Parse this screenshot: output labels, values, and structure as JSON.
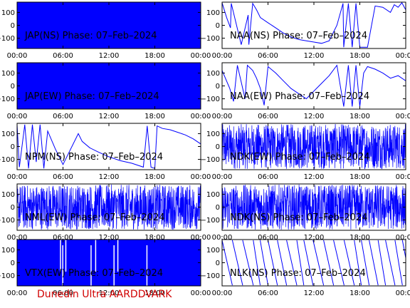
{
  "colors": {
    "trace": "#0000ff",
    "frame": "#000000",
    "footer": "#d00000",
    "background": "#ffffff"
  },
  "footer": {
    "text": "Dunedin Ultra AARDDVARK"
  },
  "chart_data": [
    {
      "type": "line",
      "title": "JAP(NS) Phase: 07–Feb–2024",
      "x_ticks": [
        "00:00",
        "06:00",
        "12:00",
        "18:00",
        "00:00"
      ],
      "y_ticks": [
        "100",
        "0",
        "−100"
      ],
      "ylim": [
        -180,
        180
      ],
      "pattern": "solid",
      "series": [
        {
          "x": [],
          "y": []
        }
      ]
    },
    {
      "type": "line",
      "title": "NAA(NS) Phase: 07–Feb–2024",
      "x_ticks": [
        "00:00",
        "06:00",
        "12:00",
        "18:00",
        "00:00"
      ],
      "y_ticks": [
        "100",
        "0",
        "−100"
      ],
      "ylim": [
        -180,
        180
      ],
      "pattern": "segments",
      "series": [
        {
          "x": [
            0,
            0.6,
            1.1,
            1.2,
            2.5,
            3.4,
            3.5,
            4.0,
            4.5,
            5.0,
            6.0,
            7.0,
            8.0,
            9.0,
            10.0,
            11.0,
            12.0,
            13.0,
            14.0,
            15.0,
            15.8,
            15.9,
            16.5,
            17.0,
            17.5,
            18.0,
            19.0,
            20.0,
            21.0,
            22.0,
            22.5,
            23.0,
            23.5,
            24.0
          ],
          "y": [
            175,
            60,
            -20,
            170,
            -150,
            80,
            -150,
            170,
            120,
            60,
            20,
            -20,
            -60,
            -90,
            -110,
            -120,
            -130,
            -140,
            -120,
            0,
            170,
            -170,
            170,
            -170,
            170,
            -170,
            -170,
            150,
            140,
            100,
            160,
            140,
            175,
            120
          ]
        }
      ]
    },
    {
      "type": "line",
      "title": "JAP(EW) Phase: 07–Feb–2024",
      "x_ticks": [
        "00:00",
        "06:00",
        "12:00",
        "18:00",
        "00:00"
      ],
      "y_ticks": [
        "100",
        "0",
        "−100"
      ],
      "ylim": [
        -180,
        180
      ],
      "pattern": "solid",
      "series": [
        {
          "x": [],
          "y": []
        }
      ]
    },
    {
      "type": "line",
      "title": "NAA(EW) Phase: 07–Feb–2024",
      "x_ticks": [
        "00:00",
        "06:00",
        "12:00",
        "18:00",
        "00:00"
      ],
      "y_ticks": [
        "100",
        "0",
        "−100"
      ],
      "ylim": [
        -180,
        180
      ],
      "pattern": "segments",
      "series": [
        {
          "x": [
            0,
            1.0,
            1.5,
            2.0,
            3.0,
            3.3,
            4.0,
            4.5,
            5.0,
            5.5,
            6.0,
            7.0,
            8.0,
            9.0,
            10.0,
            11.0,
            12.0,
            13.0,
            14.0,
            15.0,
            15.9,
            16.5,
            17.0,
            17.5,
            18.0,
            18.5,
            19.0,
            20.0,
            21.0,
            22.0,
            23.0,
            24.0
          ],
          "y": [
            120,
            -20,
            -120,
            160,
            -100,
            160,
            120,
            60,
            -20,
            -150,
            150,
            100,
            40,
            -20,
            -60,
            -100,
            -40,
            20,
            80,
            160,
            -160,
            160,
            -160,
            160,
            -160,
            100,
            150,
            130,
            100,
            60,
            80,
            40
          ]
        }
      ]
    },
    {
      "type": "line",
      "title": "NPM(NS) Phase: 07–Feb–2024",
      "x_ticks": [
        "00:00",
        "06:00",
        "12:00",
        "18:00",
        "00:00"
      ],
      "y_ticks": [
        "100",
        "0",
        "−100"
      ],
      "ylim": [
        -180,
        180
      ],
      "pattern": "segments",
      "series": [
        {
          "x": [
            0,
            0.3,
            1.0,
            1.5,
            2.0,
            2.5,
            3.0,
            3.5,
            4.0,
            5.0,
            6.0,
            8.0,
            8.5,
            9.5,
            10.5,
            12.0,
            13.5,
            15.0,
            16.5,
            17.0,
            17.5,
            18.0,
            18.3,
            19.0,
            20.0,
            21.0,
            22.0,
            23.0,
            24.0
          ],
          "y": [
            170,
            -160,
            170,
            -170,
            170,
            -120,
            170,
            -170,
            120,
            -20,
            -140,
            100,
            40,
            -10,
            -40,
            -80,
            -110,
            -130,
            -160,
            160,
            -160,
            -170,
            160,
            140,
            130,
            110,
            90,
            60,
            20
          ]
        }
      ]
    },
    {
      "type": "line",
      "title": "NDK(EW) Phase: 07–Feb–2024",
      "x_ticks": [
        "00:00",
        "06:00",
        "12:00",
        "18:00",
        "00:00"
      ],
      "y_ticks": [
        "100",
        "0",
        "−100"
      ],
      "ylim": [
        -180,
        180
      ],
      "pattern": "dense",
      "series": [
        {
          "x": [],
          "y": []
        }
      ]
    },
    {
      "type": "line",
      "title": "NML(EW) Phase: 07–Feb–2024",
      "x_ticks": [
        "00:00",
        "06:00",
        "12:00",
        "18:00",
        "00:00"
      ],
      "y_ticks": [
        "100",
        "0",
        "−100"
      ],
      "ylim": [
        -180,
        180
      ],
      "pattern": "dense",
      "series": [
        {
          "x": [],
          "y": []
        }
      ]
    },
    {
      "type": "line",
      "title": "NDK(NS) Phase: 07–Feb–2024",
      "x_ticks": [
        "00:00",
        "06:00",
        "12:00",
        "18:00",
        "00:00"
      ],
      "y_ticks": [
        "100",
        "0",
        "−100"
      ],
      "ylim": [
        -180,
        180
      ],
      "pattern": "dense",
      "series": [
        {
          "x": [],
          "y": []
        }
      ]
    },
    {
      "type": "line",
      "title": "VTX(EW) Phase: 07–Feb–2024",
      "x_ticks": [
        "00:00",
        "06:00",
        "12:00",
        "18:00",
        "00:00"
      ],
      "y_ticks": [
        "100",
        "0",
        "−100"
      ],
      "ylim": [
        -180,
        180
      ],
      "pattern": "solid-gaps",
      "series": [
        {
          "x": [],
          "y": []
        }
      ]
    },
    {
      "type": "line",
      "title": "NLK(NS) Phase: 07–Feb–2024",
      "x_ticks": [
        "00:00",
        "06:00",
        "12:00",
        "18:00",
        "00:00"
      ],
      "y_ticks": [
        "100",
        "0",
        "−100"
      ],
      "ylim": [
        -180,
        180
      ],
      "pattern": "sawtooth",
      "series": [
        {
          "x": [],
          "y": []
        }
      ]
    }
  ]
}
